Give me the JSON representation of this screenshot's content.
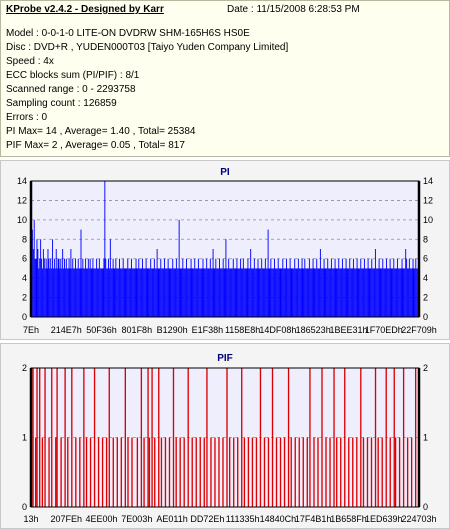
{
  "header": {
    "title": "KProbe v2.4.2 - Designed by Karr",
    "date": "Date : 11/15/2008 6:28:53 PM"
  },
  "info_lines": [
    "Model : 0-0-1-0 LITE-ON DVDRW SHM-165H6S HS0E",
    "Disc : DVD+R , YUDEN000T03 [Taiyo Yuden Company Limited]",
    "Speed : 4x",
    "ECC blocks sum (PI/PIF) : 8/1",
    "Scanned range : 0 - 2293758",
    "Sampling count : 126859",
    "Errors : 0",
    "PI Max= 14 , Average= 1.40 , Total= 25384",
    "PIF Max= 2 , Average= 0.05 , Total= 817"
  ],
  "chart_data": [
    {
      "type": "bar",
      "title": "PI",
      "color": "#0000ff",
      "grid": true,
      "ylim": [
        0,
        14
      ],
      "yticks": [
        0,
        2,
        4,
        6,
        8,
        10,
        12,
        14
      ],
      "xticks": [
        "7Eh",
        "214E7h",
        "50F36h",
        "801F8h",
        "B1290h",
        "E1F38h",
        "1158E8h",
        "14DF08h",
        "186523h",
        "1BEE31h",
        "1F70EDh",
        "22F709h"
      ],
      "max": 14,
      "average": 1.4,
      "total": 25384,
      "series": [
        {
          "values": [
            14,
            9,
            7,
            10,
            6,
            6,
            8,
            7,
            5,
            6,
            8,
            6,
            5,
            7,
            6,
            5,
            6,
            5,
            7,
            6,
            5,
            6,
            5,
            8,
            5,
            6,
            5,
            7,
            5,
            6,
            6,
            5,
            6,
            5,
            7,
            5,
            6,
            5,
            6,
            5,
            5,
            6,
            5,
            7,
            5,
            6,
            5,
            5,
            6,
            5,
            5,
            6,
            5,
            5,
            9,
            5,
            6,
            5,
            5,
            6,
            5,
            5,
            6,
            5,
            6,
            5,
            5,
            6,
            5,
            5,
            5,
            6,
            5,
            5,
            6,
            5,
            5,
            5,
            5,
            6,
            14,
            6,
            5,
            5,
            6,
            5,
            8,
            5,
            5,
            6,
            5,
            5,
            6,
            5,
            5,
            5,
            6,
            5,
            5,
            5,
            6,
            5,
            5,
            5,
            5,
            6,
            5,
            5,
            5,
            6,
            5,
            5,
            5,
            5,
            6,
            5,
            5,
            6,
            5,
            5,
            5,
            6,
            5,
            5,
            5,
            6,
            5,
            5,
            5,
            5,
            6,
            5,
            5,
            5,
            6,
            5,
            5,
            7,
            5,
            5,
            5,
            6,
            5,
            5,
            5,
            6,
            5,
            5,
            5,
            6,
            5,
            5,
            5,
            5,
            6,
            5,
            5,
            5,
            6,
            5,
            5,
            10,
            5,
            5,
            5,
            6,
            5,
            5,
            5,
            6,
            5,
            5,
            5,
            5,
            6,
            5,
            5,
            5,
            6,
            5,
            5,
            5,
            6,
            5,
            5,
            5,
            5,
            6,
            5,
            5,
            5,
            6,
            5,
            5,
            5,
            6,
            5,
            5,
            7,
            5,
            5,
            6,
            5,
            5,
            5,
            6,
            5,
            5,
            5,
            6,
            5,
            5,
            8,
            5,
            5,
            6,
            5,
            5,
            5,
            5,
            6,
            5,
            5,
            5,
            6,
            5,
            5,
            5,
            6,
            5,
            5,
            6,
            5,
            5,
            5,
            5,
            6,
            5,
            5,
            7,
            5,
            5,
            5,
            6,
            5,
            5,
            5,
            6,
            5,
            5,
            5,
            6,
            5,
            5,
            5,
            6,
            5,
            5,
            9,
            5,
            5,
            6,
            5,
            5,
            5,
            6,
            5,
            5,
            5,
            6,
            5,
            5,
            5,
            5,
            6,
            5,
            5,
            5,
            6,
            5,
            5,
            5,
            6,
            5,
            5,
            5,
            5,
            6,
            5,
            5,
            5,
            6,
            5,
            5,
            5,
            6,
            5,
            5,
            6,
            5,
            5,
            5,
            5,
            6,
            5,
            5,
            5,
            6,
            5,
            5,
            5,
            6,
            5,
            5,
            5,
            7,
            5,
            5,
            5,
            6,
            5,
            5,
            5,
            6,
            5,
            5,
            5,
            6,
            5,
            5,
            5,
            6,
            5,
            5,
            5,
            6,
            5,
            5,
            5,
            6,
            5,
            5,
            5,
            6,
            5,
            5,
            5,
            6,
            5,
            5,
            5,
            6,
            5,
            5,
            5,
            6,
            5,
            5,
            5,
            6,
            5,
            5,
            5,
            6,
            5,
            5,
            5,
            6,
            5,
            5,
            5,
            6,
            5,
            5,
            5,
            7,
            5,
            5,
            5,
            6,
            5,
            5,
            5,
            6,
            5,
            5,
            5,
            6,
            5,
            5,
            5,
            6,
            5,
            5,
            5,
            6,
            5,
            5,
            5,
            6,
            5,
            5,
            5,
            5,
            6,
            5,
            5,
            5,
            7,
            6,
            5,
            5,
            6,
            5,
            5,
            5,
            6,
            5,
            5,
            6,
            5,
            5,
            5
          ]
        }
      ]
    },
    {
      "type": "bar",
      "title": "PIF",
      "color": "#dd0000",
      "grid": true,
      "ylim": [
        0,
        2
      ],
      "yticks": [
        0,
        1,
        2
      ],
      "xticks": [
        "13h",
        "207FEh",
        "4EE00h",
        "7E003h",
        "AE011h",
        "DD72Eh",
        "111335h",
        "14840Ch",
        "17F4B1h",
        "1B658Fh",
        "1ED639h",
        "224703h"
      ],
      "max": 2,
      "average": 0.05,
      "total": 817,
      "series": [
        {
          "values": [
            0,
            2,
            0,
            1,
            2,
            0,
            2,
            0,
            1,
            0,
            2,
            0,
            0,
            1,
            0,
            2,
            0,
            0,
            1,
            2,
            0,
            0,
            1,
            0,
            0,
            2,
            0,
            1,
            0,
            0,
            2,
            0,
            0,
            1,
            0,
            0,
            1,
            0,
            0,
            2,
            0,
            1,
            0,
            0,
            1,
            0,
            0,
            2,
            0,
            0,
            1,
            0,
            0,
            1,
            0,
            0,
            1,
            0,
            2,
            0,
            0,
            1,
            0,
            0,
            1,
            0,
            0,
            1,
            0,
            0,
            2,
            0,
            1,
            0,
            0,
            1,
            0,
            0,
            0,
            1,
            0,
            0,
            2,
            0,
            1,
            0,
            0,
            2,
            1,
            0,
            2,
            0,
            1,
            0,
            0,
            2,
            0,
            1,
            0,
            0,
            1,
            0,
            0,
            1,
            0,
            0,
            2,
            0,
            1,
            0,
            0,
            1,
            0,
            0,
            1,
            0,
            0,
            2,
            0,
            0,
            1,
            0,
            0,
            1,
            0,
            0,
            1,
            0,
            0,
            1,
            0,
            2,
            0,
            0,
            1,
            0,
            0,
            1,
            0,
            0,
            1,
            0,
            0,
            1,
            0,
            0,
            2,
            0,
            1,
            0,
            0,
            1,
            0,
            0,
            1,
            0,
            0,
            2,
            0,
            1,
            0,
            0,
            1,
            0,
            0,
            1,
            0,
            0,
            1,
            0,
            0,
            2,
            0,
            0,
            1,
            0,
            0,
            1,
            0,
            0,
            2,
            0,
            0,
            1,
            0,
            0,
            1,
            0,
            0,
            1,
            0,
            0,
            2,
            0,
            1,
            0,
            0,
            1,
            0,
            0,
            1,
            0,
            0,
            1,
            0,
            0,
            1,
            0,
            2,
            0,
            0,
            1,
            0,
            0,
            1,
            0,
            0,
            2,
            0,
            0,
            1,
            0,
            0,
            1,
            0,
            0,
            2,
            0,
            1,
            0,
            0,
            1,
            0,
            0,
            2,
            0,
            0,
            1,
            0,
            0,
            1,
            0,
            0,
            1,
            0,
            0,
            2,
            0,
            1,
            0,
            0,
            1,
            0,
            0,
            1,
            0,
            0,
            2,
            0,
            1,
            0,
            0,
            1,
            0,
            0,
            2,
            0,
            0,
            1,
            0,
            0,
            2,
            1,
            0,
            0,
            1,
            0,
            0,
            2,
            0,
            0,
            1,
            0,
            0,
            1,
            0,
            0,
            2,
            0,
            0
          ]
        }
      ]
    }
  ]
}
